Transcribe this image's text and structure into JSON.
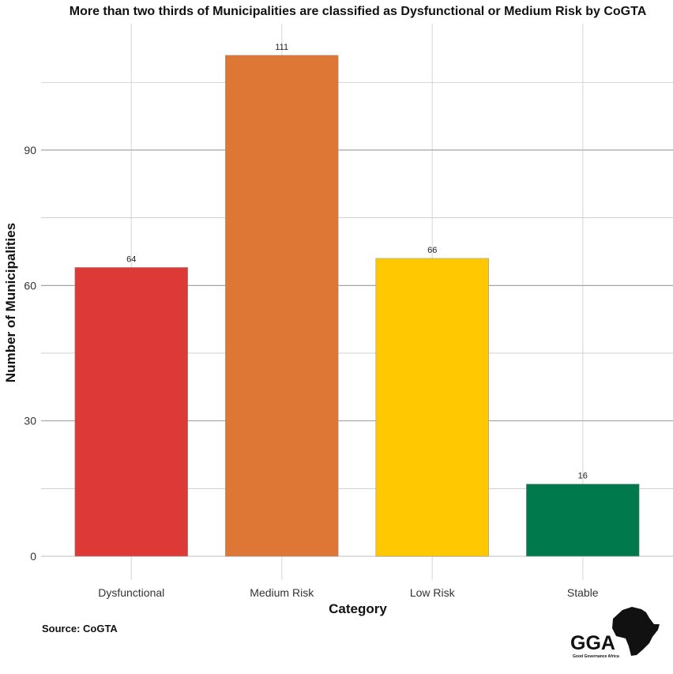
{
  "chart_data": {
    "type": "bar",
    "title": "More than two thirds of Municipalities are classified as Dysfunctional or Medium Risk by CoGTA",
    "xlabel": "Category",
    "ylabel": "Number of Municipalities",
    "categories": [
      "Dysfunctional",
      "Medium Risk",
      "Low Risk",
      "Stable"
    ],
    "values": [
      64,
      111,
      66,
      16
    ],
    "data_labels": [
      "64",
      "111",
      "66",
      "16"
    ],
    "colors": [
      "#DD3A37",
      "#DE7736",
      "#FFC800",
      "#007A4D"
    ],
    "yticks": [
      0,
      30,
      60,
      90
    ],
    "ytick_labels": [
      "0",
      "30",
      "60",
      "90"
    ],
    "ylim": [
      0,
      118
    ],
    "grid": true,
    "legend": "none"
  },
  "caption": "Source: CoGTA",
  "logo": {
    "text": "GGA",
    "subtext": "Good Governance Africa"
  }
}
